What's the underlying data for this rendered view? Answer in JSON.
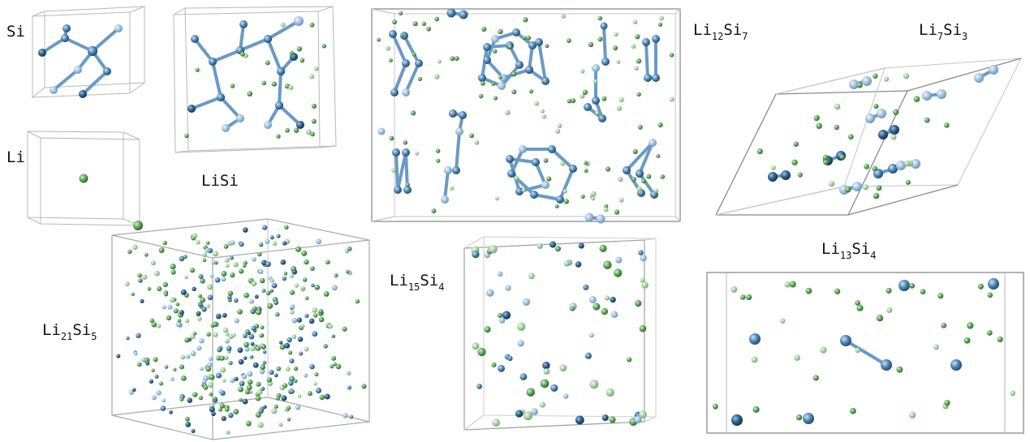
{
  "labels": {
    "si": "Si",
    "li": "Li",
    "lisi": "LiSi",
    "li21si5": {
      "a": "Li",
      "n1": "21",
      "b": "Si",
      "n2": "5"
    },
    "li12si7": {
      "a": "Li",
      "n1": "12",
      "b": "Si",
      "n2": "7"
    },
    "li15si4": {
      "a": "Li",
      "n1": "15",
      "b": "Si",
      "n2": "4"
    },
    "li7si3": {
      "a": "Li",
      "n1": "7",
      "b": "Si",
      "n2": "3"
    },
    "li13si4": {
      "a": "Li",
      "n1": "13",
      "b": "Si",
      "n2": "4"
    }
  },
  "colors": {
    "li_atom": "#5fa85a",
    "li_atom_light": "#a6d3a0",
    "si_atom": "#4f86b5",
    "si_atom_dark": "#2c5f8c",
    "si_atom_light": "#9cbfdd",
    "bond": "#6a9ac4",
    "cell_edge": "#b8b8b8"
  }
}
